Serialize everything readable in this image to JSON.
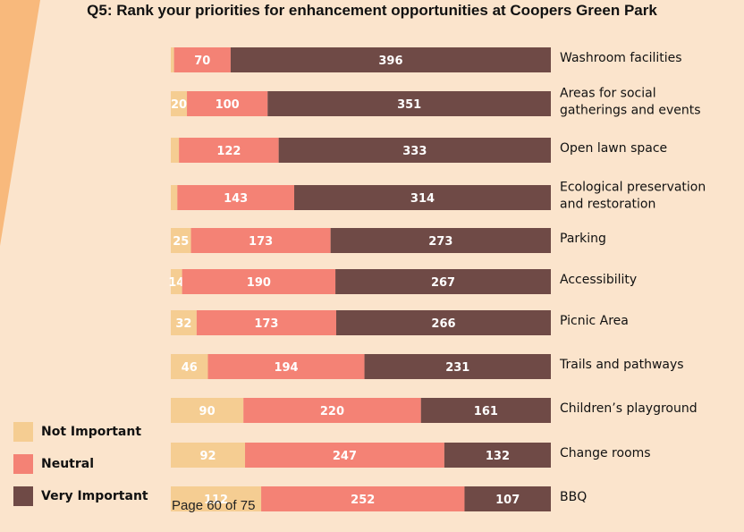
{
  "colors": {
    "background": "#fbe4cc",
    "accent": "#f8b97c",
    "not_important": "#f5cd92",
    "neutral": "#f48275",
    "very_important": "#6f4a46"
  },
  "chart_data": {
    "type": "bar",
    "orientation": "horizontal",
    "stacked": true,
    "title": "Q5: Rank your priorities for enhancement opportunities at Coopers Green Park",
    "categories": [
      "Washroom facilities",
      "Areas for social gatherings and events",
      "Open lawn space",
      "Ecological preservation and restoration",
      "Parking",
      "Accessibility",
      "Picnic Area",
      "Trails and pathways",
      "Children's playground",
      "Change rooms",
      "BBQ"
    ],
    "category_lines": [
      [
        "Washroom facilities"
      ],
      [
        "Areas for social",
        "gatherings and events"
      ],
      [
        "Open lawn space"
      ],
      [
        "Ecological preservation",
        "and restoration"
      ],
      [
        "Parking"
      ],
      [
        "Accessibility"
      ],
      [
        "Picnic Area"
      ],
      [
        "Trails and pathways"
      ],
      [
        "Children’s playground"
      ],
      [
        "Change rooms"
      ],
      [
        "BBQ"
      ]
    ],
    "series": [
      {
        "name": "Not Important",
        "values": [
          4,
          20,
          10,
          8,
          25,
          14,
          32,
          46,
          90,
          92,
          112
        ],
        "labels": [
          "",
          "20",
          "",
          "",
          "25",
          "14",
          "32",
          "46",
          "90",
          "92",
          "112"
        ]
      },
      {
        "name": "Neutral",
        "values": [
          70,
          100,
          122,
          143,
          173,
          190,
          173,
          194,
          220,
          247,
          252
        ],
        "labels": [
          "70",
          "100",
          "122",
          "143",
          "173",
          "190",
          "173",
          "194",
          "220",
          "247",
          "252"
        ]
      },
      {
        "name": "Very Important",
        "values": [
          396,
          351,
          333,
          314,
          273,
          267,
          266,
          231,
          161,
          132,
          107
        ],
        "labels": [
          "396",
          "351",
          "333",
          "314",
          "273",
          "267",
          "266",
          "231",
          "161",
          "132",
          "107"
        ]
      }
    ],
    "legend_position": "bottom-left",
    "grid": false
  },
  "legend": {
    "items": [
      {
        "label": "Not Important",
        "color_key": "not_important"
      },
      {
        "label": "Neutral",
        "color_key": "neutral"
      },
      {
        "label": "Very Important",
        "color_key": "very_important"
      }
    ]
  },
  "footer": {
    "page_text": "Page 60 of 75"
  }
}
